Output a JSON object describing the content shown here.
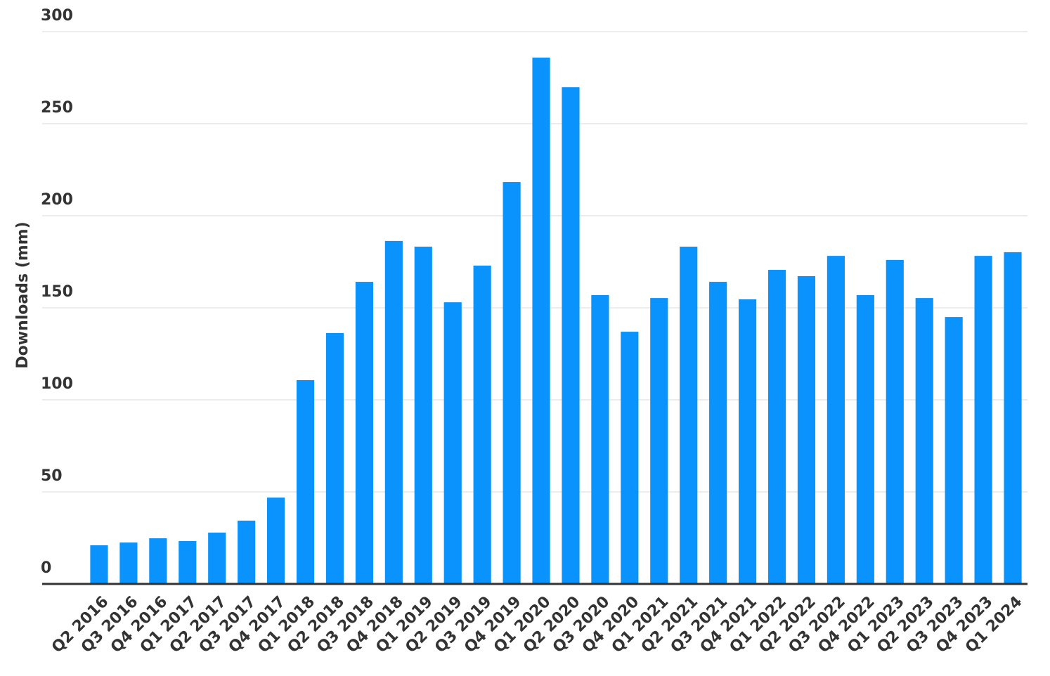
{
  "chart_data": {
    "type": "bar",
    "y_label": "Downloads (mm)",
    "categories": [
      "Q2 2016",
      "Q3 2016",
      "Q4 2016",
      "Q1 2017",
      "Q2 2017",
      "Q3 2017",
      "Q4 2017",
      "Q1 2018",
      "Q2 2018",
      "Q3 2018",
      "Q4 2018",
      "Q1 2019",
      "Q2 2019",
      "Q3 2019",
      "Q4 2019",
      "Q1 2020",
      "Q2 2020",
      "Q3 2020",
      "Q4 2020",
      "Q1 2021",
      "Q2 2021",
      "Q3 2021",
      "Q4 2021",
      "Q1 2022",
      "Q2 2022",
      "Q3 2022",
      "Q4 2022",
      "Q1 2023",
      "Q2 2023",
      "Q3 2023",
      "Q4 2023",
      "Q1 2024"
    ],
    "values": [
      21,
      22.5,
      24.8,
      23.3,
      27.9,
      34.4,
      46.9,
      110.7,
      136.3,
      164.1,
      186.3,
      183.2,
      153,
      172.9,
      218.3,
      285.9,
      269.8,
      156.9,
      137,
      155.3,
      183.2,
      164.1,
      154.6,
      170.6,
      167.2,
      178.2,
      156.9,
      176,
      155.3,
      145,
      178.2,
      180.2
    ],
    "color": "#0a93fc",
    "ylim": [
      0,
      300
    ],
    "yticks": [
      0,
      50,
      100,
      150,
      200,
      250,
      300
    ],
    "grid": true
  }
}
